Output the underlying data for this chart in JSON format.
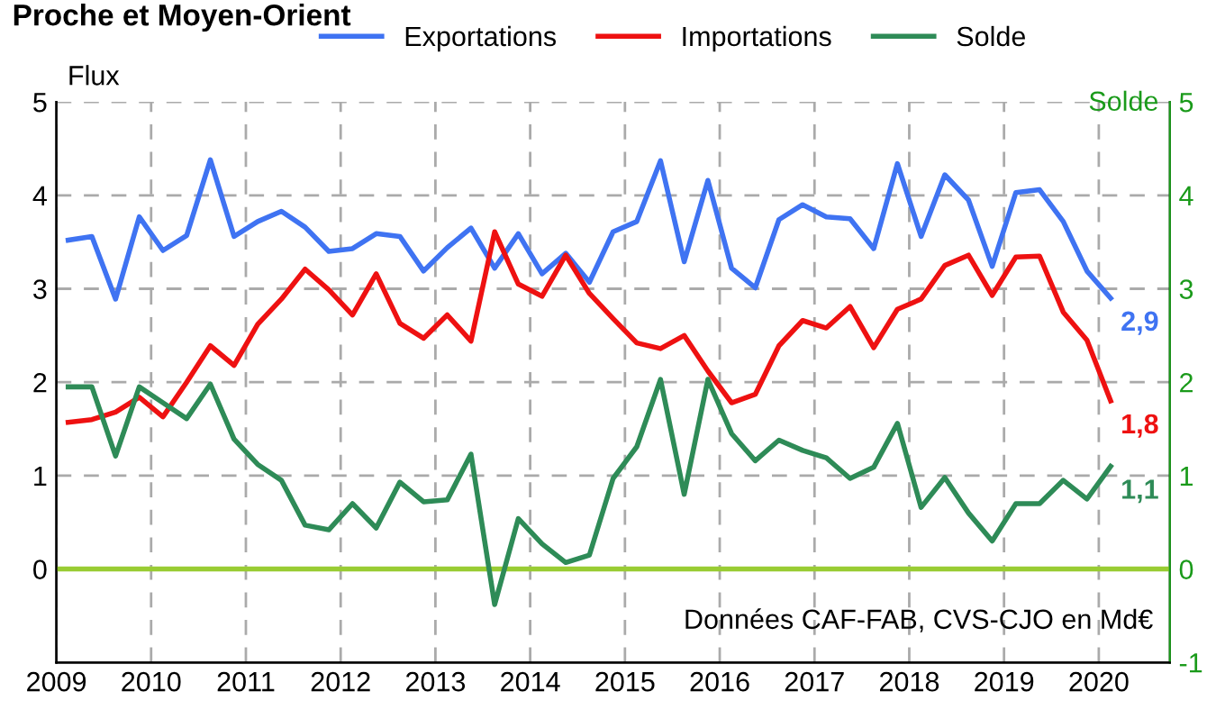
{
  "chart_data": {
    "type": "line",
    "title": "Proche et Moyen-Orient",
    "ylabel": "Flux",
    "y2label": "Solde",
    "x": [
      2009.125,
      2009.375,
      2009.625,
      2009.875,
      2010.125,
      2010.375,
      2010.625,
      2010.875,
      2011.125,
      2011.375,
      2011.625,
      2011.875,
      2012.125,
      2012.375,
      2012.625,
      2012.875,
      2013.125,
      2013.375,
      2013.625,
      2013.875,
      2014.125,
      2014.375,
      2014.625,
      2014.875,
      2015.125,
      2015.375,
      2015.625,
      2015.875,
      2016.125,
      2016.375,
      2016.625,
      2016.875,
      2017.125,
      2017.375,
      2017.625,
      2017.875,
      2018.125,
      2018.375,
      2018.625,
      2018.875,
      2019.125,
      2019.375,
      2019.625,
      2019.875,
      2020.125
    ],
    "series": [
      {
        "name": "Exportations",
        "color": "#3f73f2",
        "values": [
          3.52,
          3.56,
          2.89,
          3.77,
          3.41,
          3.57,
          4.38,
          3.56,
          3.72,
          3.83,
          3.66,
          3.4,
          3.43,
          3.59,
          3.56,
          3.19,
          3.44,
          3.65,
          3.22,
          3.59,
          3.16,
          3.38,
          3.07,
          3.61,
          3.72,
          4.37,
          3.29,
          4.16,
          3.22,
          3.01,
          3.74,
          3.9,
          3.77,
          3.75,
          3.43,
          4.34,
          3.56,
          4.22,
          3.95,
          3.24,
          4.03,
          4.06,
          3.72,
          3.19,
          2.9
        ],
        "value_labels": [
          null,
          null,
          null,
          null,
          null,
          null,
          null,
          null,
          null,
          null,
          null,
          null,
          null,
          null,
          null,
          null,
          null,
          null,
          null,
          null,
          null,
          null,
          null,
          null,
          null,
          null,
          null,
          null,
          null,
          null,
          null,
          null,
          null,
          null,
          null,
          null,
          null,
          null,
          null,
          null,
          null,
          null,
          null,
          null,
          "2,9"
        ]
      },
      {
        "name": "Importations",
        "color": "#ee1111",
        "values": [
          1.57,
          1.6,
          1.68,
          1.84,
          1.63,
          2.0,
          2.39,
          2.18,
          2.62,
          2.89,
          3.21,
          2.99,
          2.72,
          3.16,
          2.63,
          2.47,
          2.72,
          2.44,
          3.61,
          3.05,
          2.92,
          3.36,
          2.95,
          2.68,
          2.42,
          2.36,
          2.5,
          2.12,
          1.78,
          1.87,
          2.39,
          2.66,
          2.58,
          2.81,
          2.37,
          2.78,
          2.89,
          3.25,
          3.36,
          2.93,
          3.34,
          3.35,
          2.75,
          2.45,
          1.8
        ],
        "value_labels": [
          null,
          null,
          null,
          null,
          null,
          null,
          null,
          null,
          null,
          null,
          null,
          null,
          null,
          null,
          null,
          null,
          null,
          null,
          null,
          null,
          null,
          null,
          null,
          null,
          null,
          null,
          null,
          null,
          null,
          null,
          null,
          null,
          null,
          null,
          null,
          null,
          null,
          null,
          null,
          null,
          null,
          null,
          null,
          null,
          "1,8"
        ]
      },
      {
        "name": "Solde",
        "color": "#2e8b57",
        "axis": "y2",
        "values": [
          1.95,
          1.95,
          1.21,
          1.95,
          1.78,
          1.61,
          1.98,
          1.39,
          1.12,
          0.95,
          0.47,
          0.42,
          0.7,
          0.44,
          0.93,
          0.72,
          0.74,
          1.23,
          -0.38,
          0.54,
          0.27,
          0.07,
          0.15,
          0.97,
          1.31,
          2.03,
          0.8,
          2.03,
          1.45,
          1.16,
          1.38,
          1.27,
          1.19,
          0.97,
          1.09,
          1.56,
          0.66,
          0.98,
          0.6,
          0.3,
          0.7,
          0.7,
          0.95,
          0.75,
          1.1
        ],
        "value_labels": [
          null,
          null,
          null,
          null,
          null,
          null,
          null,
          null,
          null,
          null,
          null,
          null,
          null,
          null,
          null,
          null,
          null,
          null,
          null,
          null,
          null,
          null,
          null,
          null,
          null,
          null,
          null,
          null,
          null,
          null,
          null,
          null,
          null,
          null,
          null,
          null,
          null,
          null,
          null,
          null,
          null,
          null,
          null,
          null,
          "1,1"
        ]
      }
    ],
    "xlim": [
      2009,
      2020.75
    ],
    "xticks": [
      2009,
      2010,
      2011,
      2012,
      2013,
      2014,
      2015,
      2016,
      2017,
      2018,
      2019,
      2020
    ],
    "ylim": [
      -1,
      5
    ],
    "yticks": [
      0,
      1,
      2,
      3,
      4,
      5
    ],
    "y2lim": [
      -1,
      5
    ],
    "y2ticks": [
      -1,
      0,
      1,
      2,
      3,
      4,
      5
    ],
    "ref_lines": [
      {
        "axis": "y2",
        "value": 0,
        "color": "#99cc33"
      }
    ],
    "annotations": [
      "Données CAF-FAB, CVS-CJO en Md€"
    ],
    "grid": true,
    "legend": "top",
    "line_style": "solid",
    "marker": "none"
  }
}
